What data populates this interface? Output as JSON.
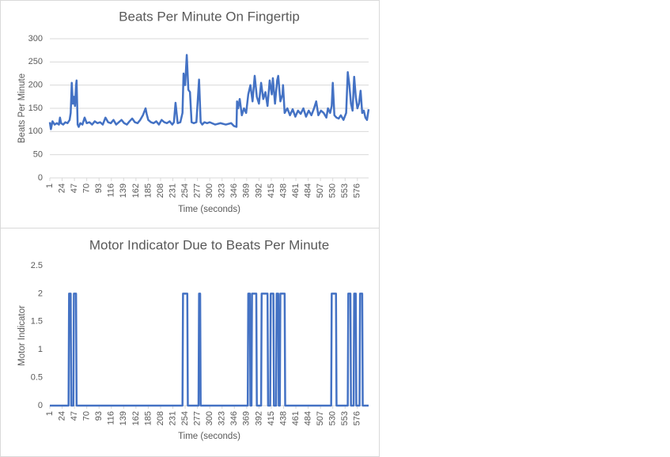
{
  "chart_data": [
    {
      "type": "line",
      "title": "Beats Per Minute On Fingertip",
      "x_label": "Time (seconds)",
      "y_label": "Beats Per Minute",
      "xlim": [
        1,
        597
      ],
      "ylim": [
        0,
        300
      ],
      "xticks": [
        1,
        24,
        47,
        70,
        93,
        116,
        139,
        162,
        185,
        208,
        231,
        254,
        277,
        300,
        323,
        346,
        369,
        392,
        415,
        438,
        461,
        484,
        507,
        530,
        553,
        576
      ],
      "yticks": [
        0,
        50,
        100,
        150,
        200,
        250,
        300
      ],
      "grid": true,
      "series": [
        {
          "color": "#4472c4",
          "x": [
            1,
            3,
            6,
            10,
            14,
            18,
            20,
            22,
            26,
            30,
            34,
            38,
            40,
            42,
            44,
            46,
            48,
            50,
            51,
            53,
            55,
            58,
            62,
            66,
            70,
            75,
            80,
            85,
            90,
            95,
            100,
            105,
            110,
            115,
            120,
            125,
            130,
            135,
            140,
            145,
            150,
            155,
            160,
            165,
            170,
            175,
            180,
            182,
            185,
            190,
            195,
            200,
            205,
            210,
            215,
            220,
            225,
            230,
            233,
            236,
            240,
            245,
            249,
            251,
            254,
            257,
            260,
            263,
            266,
            270,
            275,
            280,
            283,
            286,
            290,
            295,
            300,
            310,
            320,
            330,
            340,
            345,
            350,
            351,
            353,
            356,
            360,
            364,
            368,
            372,
            376,
            380,
            384,
            388,
            392,
            396,
            400,
            404,
            408,
            412,
            416,
            418,
            422,
            426,
            428,
            432,
            436,
            437,
            440,
            445,
            450,
            455,
            460,
            465,
            470,
            475,
            480,
            485,
            490,
            495,
            499,
            503,
            508,
            513,
            518,
            521,
            525,
            528,
            530,
            533,
            537,
            541,
            545,
            550,
            555,
            558,
            561,
            564,
            567,
            570,
            573,
            576,
            579,
            582,
            585,
            588,
            591,
            594,
            597
          ],
          "values": [
            120,
            105,
            122,
            115,
            118,
            115,
            130,
            118,
            115,
            120,
            118,
            125,
            140,
            205,
            160,
            175,
            155,
            200,
            210,
            115,
            110,
            118,
            115,
            130,
            118,
            120,
            115,
            122,
            118,
            120,
            115,
            130,
            120,
            118,
            125,
            115,
            120,
            125,
            118,
            115,
            122,
            128,
            120,
            118,
            125,
            135,
            150,
            138,
            125,
            120,
            118,
            122,
            115,
            125,
            120,
            118,
            122,
            115,
            120,
            162,
            118,
            120,
            140,
            225,
            200,
            265,
            190,
            185,
            120,
            118,
            120,
            212,
            120,
            115,
            120,
            118,
            120,
            115,
            118,
            115,
            118,
            112,
            110,
            165,
            150,
            170,
            135,
            150,
            140,
            180,
            200,
            165,
            220,
            175,
            160,
            205,
            170,
            185,
            155,
            210,
            180,
            215,
            160,
            210,
            220,
            165,
            180,
            200,
            140,
            150,
            135,
            148,
            132,
            145,
            138,
            150,
            132,
            145,
            135,
            150,
            165,
            135,
            145,
            140,
            130,
            150,
            140,
            155,
            205,
            135,
            130,
            128,
            135,
            125,
            140,
            228,
            200,
            160,
            145,
            218,
            175,
            150,
            160,
            188,
            140,
            145,
            130,
            125,
            148
          ]
        }
      ]
    },
    {
      "type": "line",
      "title": "Motor Indicator Due to Beats Per Minute",
      "x_label": "Time (seconds)",
      "y_label": "Motor Indicator",
      "xlim": [
        1,
        597
      ],
      "ylim": [
        0,
        2.5
      ],
      "xticks": [
        1,
        24,
        47,
        70,
        93,
        116,
        139,
        162,
        185,
        208,
        231,
        254,
        277,
        300,
        323,
        346,
        369,
        392,
        415,
        438,
        461,
        484,
        507,
        530,
        553,
        576
      ],
      "yticks": [
        0,
        0.5,
        1,
        1.5,
        2,
        2.5
      ],
      "grid": false,
      "series": [
        {
          "color": "#4472c4",
          "x": [
            1,
            36,
            37,
            40,
            41,
            45,
            46,
            50,
            51,
            249,
            250,
            258,
            259,
            279,
            280,
            282,
            283,
            371,
            372,
            375,
            376,
            378,
            379,
            387,
            388,
            396,
            397,
            408,
            409,
            413,
            414,
            419,
            420,
            424,
            425,
            428,
            429,
            431,
            432,
            440,
            441,
            527,
            528,
            536,
            537,
            558,
            559,
            563,
            564,
            569,
            570,
            573,
            574,
            580,
            581,
            585,
            586,
            597
          ],
          "values": [
            0,
            0,
            2,
            2,
            0,
            0,
            2,
            2,
            0,
            0,
            2,
            2,
            0,
            0,
            2,
            2,
            0,
            0,
            2,
            2,
            0,
            0,
            2,
            2,
            0,
            0,
            2,
            2,
            0,
            0,
            2,
            2,
            0,
            0,
            2,
            2,
            0,
            0,
            2,
            2,
            0,
            0,
            2,
            2,
            0,
            0,
            2,
            2,
            0,
            0,
            2,
            2,
            0,
            0,
            2,
            2,
            0,
            0
          ]
        }
      ]
    }
  ]
}
